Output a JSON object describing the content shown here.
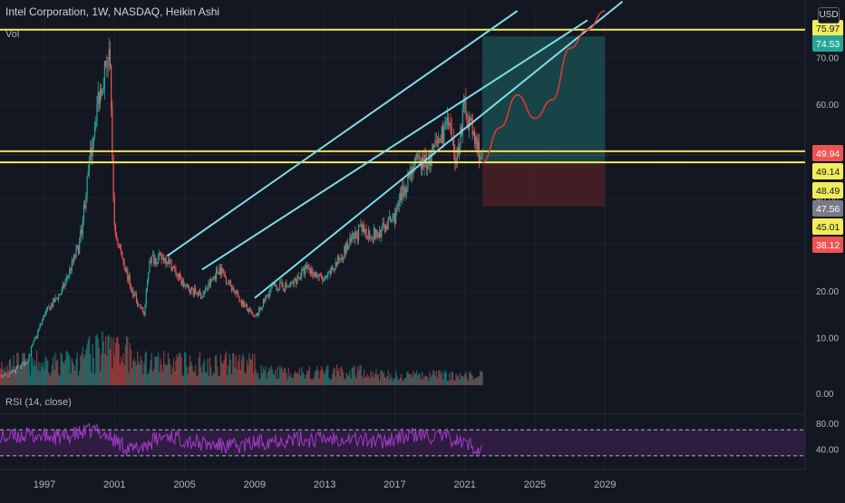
{
  "header": {
    "title": "Intel Corporation, 1W, NASDAQ, Heikin Ashi",
    "volume_label": "Vol",
    "rsi_label": "RSI (14, close)",
    "currency": "USD"
  },
  "colors": {
    "background": "#131722",
    "up": "#26a69a",
    "down": "#ef5350",
    "channel": "#7fdbe8",
    "horizontal_level": "#f3ec5a",
    "rsi_line": "#a23bc6",
    "rsi_band": "#3a1f4f",
    "projection": "#e53935",
    "target_zone": "#1a4b4d",
    "stop_zone": "#4a1f24"
  },
  "chart_data": [
    {
      "type": "line",
      "name": "price",
      "title": "Intel Corporation, 1W, NASDAQ, Heikin Ashi",
      "xlabel": "",
      "ylabel": "",
      "x_ticks": [
        "1997",
        "2001",
        "2005",
        "2009",
        "2013",
        "2017",
        "2021",
        "2025",
        "2029"
      ],
      "y_ticks": [
        "10.00",
        "20.00",
        "30.00",
        "40.00",
        "50.00",
        "60.00",
        "70.00"
      ],
      "price_labels": [
        {
          "value": "75.97",
          "role": "level"
        },
        {
          "value": "74.53",
          "role": "target"
        },
        {
          "value": "49.94",
          "role": "level"
        },
        {
          "value": "49.14",
          "role": "level"
        },
        {
          "value": "48.49",
          "role": "last"
        },
        {
          "value": "47.56",
          "role": "entry"
        },
        {
          "value": "45.01",
          "role": "level"
        },
        {
          "value": "38.12",
          "role": "stop"
        }
      ],
      "x": [
        1994,
        1995,
        1996,
        1997,
        1998,
        1999,
        2000,
        2000.7,
        2001,
        2002,
        2002.7,
        2003,
        2004,
        2005,
        2006,
        2007,
        2008,
        2009,
        2010,
        2011,
        2012,
        2013,
        2014,
        2015,
        2016,
        2017,
        2018,
        2019,
        2020,
        2020.5,
        2021,
        2021.5,
        2022
      ],
      "values": [
        1,
        2,
        5,
        15,
        20,
        30,
        60,
        72,
        33,
        20,
        15,
        27,
        27,
        21,
        19,
        25,
        19,
        14,
        21,
        21,
        25,
        22,
        28,
        33,
        32,
        36,
        47,
        48,
        56,
        48,
        60,
        53,
        48
      ],
      "horizontal_levels": [
        75.97,
        49.94,
        47.56
      ],
      "channels": [
        {
          "from": [
            2004,
            27.5
          ],
          "to": [
            2024,
            80
          ]
        },
        {
          "from": [
            2006,
            24.6
          ],
          "to": [
            2028,
            78
          ]
        },
        {
          "from": [
            2009,
            18.5
          ],
          "to": [
            2030,
            82
          ]
        }
      ],
      "projection": [
        [
          2022,
          47.56
        ],
        [
          2023,
          55
        ],
        [
          2024,
          62
        ],
        [
          2025,
          57
        ],
        [
          2026,
          61
        ],
        [
          2027,
          72
        ],
        [
          2028,
          75.97
        ],
        [
          2029,
          80
        ]
      ],
      "position_box": {
        "x_from": 2022,
        "x_to": 2029,
        "entry": 47.56,
        "target": 74.53,
        "stop": 38.12
      }
    },
    {
      "type": "bar",
      "name": "volume",
      "y_ticks": [
        "0.00"
      ]
    },
    {
      "type": "line",
      "name": "rsi",
      "title": "RSI (14, close)",
      "y_ticks": [
        "80.00",
        "40.00"
      ],
      "bands": [
        30,
        70
      ],
      "ylim": [
        20,
        90
      ],
      "x": [
        1994,
        1996,
        1998,
        2000,
        2002,
        2004,
        2006,
        2008,
        2010,
        2012,
        2014,
        2016,
        2018,
        2020,
        2022
      ],
      "values": [
        56,
        62,
        58,
        70,
        38,
        62,
        48,
        44,
        55,
        55,
        58,
        52,
        62,
        58,
        40
      ]
    }
  ]
}
